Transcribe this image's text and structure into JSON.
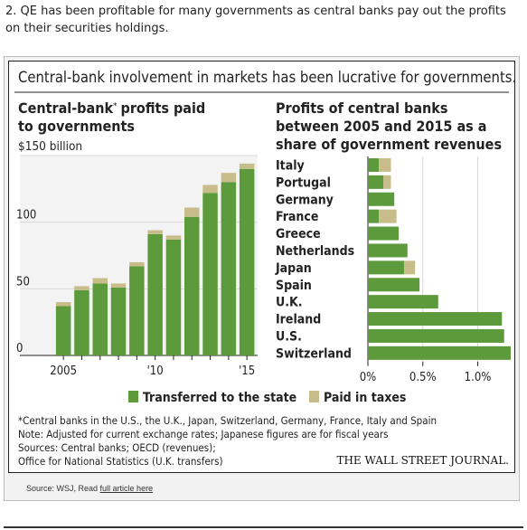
{
  "caption": "2. QE has been profitable for many governments as central banks pay out the profits on their securities holdings.",
  "figure_title": "Central-bank involvement in markets has been lucrative for governments.",
  "left_chart": {
    "title_line1_a": "Central-bank",
    "title_star": "*",
    "title_line1_b": "profits paid",
    "title_line2": "to governments",
    "y_unit_label": "$150 billion"
  },
  "right_chart": {
    "title_line1": "Profits of central banks",
    "title_line2": "between 2005 and 2015 as a",
    "title_line3": "share of government revenues"
  },
  "legend": {
    "transferred": "Transferred to the state",
    "taxes": "Paid in taxes"
  },
  "footnotes": {
    "line1": "*Central banks in the U.S., the U.K., Japan, Switzerland, Germany, France, Italy and Spain",
    "line2": "Note: Adjusted for current exchange rates; Japanese figures are for fiscal years",
    "line3": "Sources: Central banks; OECD (revenues);",
    "line4": "Office for National Statistics (U.K. transfers)"
  },
  "logo": "THE WALL STREET JOURNAL.",
  "source": {
    "prefix": "Source: WSJ, Read ",
    "link": "full article here"
  },
  "colors": {
    "transferred": "#5d9a3c",
    "taxes": "#c8bd8a",
    "grid": "#d9d9d9",
    "axis": "#222222"
  },
  "chart_data": [
    {
      "type": "bar",
      "stacked": true,
      "title": "Central-bank* profits paid to governments",
      "ylabel": "$150 billion",
      "x": [
        2005,
        2006,
        2007,
        2008,
        2009,
        2010,
        2011,
        2012,
        2013,
        2014,
        2015
      ],
      "x_tick_labels": [
        "2005",
        "",
        "",
        "",
        "",
        "'10",
        "",
        "",
        "",
        "",
        "'15"
      ],
      "ylim": [
        0,
        150
      ],
      "y_ticks": [
        0,
        50,
        100,
        150
      ],
      "y_tick_labels": [
        "0",
        "50",
        "100",
        ""
      ],
      "grid": true,
      "series": [
        {
          "name": "Transferred to the state",
          "values": [
            37,
            49,
            54,
            51,
            67,
            91,
            87,
            104,
            122,
            130,
            140
          ]
        },
        {
          "name": "Paid in taxes",
          "values": [
            3,
            3,
            4,
            3,
            3,
            3,
            3,
            7,
            6,
            7,
            4
          ]
        }
      ]
    },
    {
      "type": "bar",
      "orientation": "horizontal",
      "stacked": true,
      "title": "Profits of central banks between 2005 and 2015 as a share of government revenues",
      "categories": [
        "Italy",
        "Portugal",
        "Germany",
        "France",
        "Greece",
        "Netherlands",
        "Japan",
        "Spain",
        "U.K.",
        "Ireland",
        "U.S.",
        "Switzerland"
      ],
      "xlim": [
        0,
        1.3
      ],
      "x_ticks": [
        0,
        0.5,
        1.0
      ],
      "x_tick_labels": [
        "0%",
        "0.5%",
        "1.0%"
      ],
      "grid": true,
      "series": [
        {
          "name": "Transferred to the state",
          "values": [
            0.1,
            0.14,
            0.24,
            0.1,
            0.28,
            0.36,
            0.33,
            0.47,
            0.64,
            1.22,
            1.24,
            1.3
          ]
        },
        {
          "name": "Paid in taxes",
          "values": [
            0.11,
            0.07,
            0.0,
            0.16,
            0.0,
            0.0,
            0.1,
            0.0,
            0.0,
            0.0,
            0.0,
            0.0
          ]
        }
      ]
    }
  ]
}
